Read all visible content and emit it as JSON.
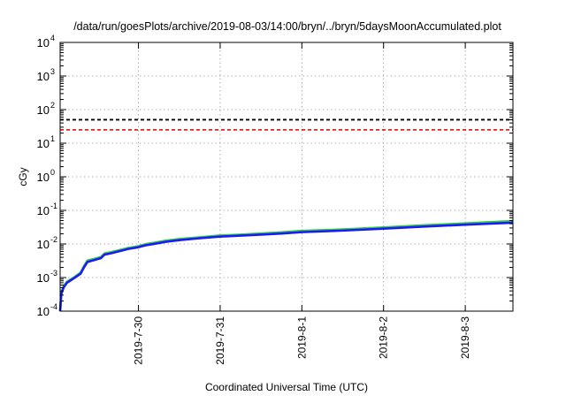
{
  "chart_data": {
    "type": "line",
    "title": "/data/run/goesPlots/archive/2019-08-03/14:00/bryn/../bryn/5daysMoonAccumulated.plot",
    "xlabel": "Coordinated Universal Time (UTC)",
    "ylabel": "cGy",
    "x_unit": "date (2019, UTC)",
    "xlim": [
      "2019-07-29T01:00",
      "2019-08-03T14:00"
    ],
    "x_ticks": [
      {
        "date": "2019-07-30T00:00",
        "label": "2019-7-30"
      },
      {
        "date": "2019-07-31T00:00",
        "label": "2019-7-31"
      },
      {
        "date": "2019-08-01T00:00",
        "label": "2019-8-1"
      },
      {
        "date": "2019-08-02T00:00",
        "label": "2019-8-2"
      },
      {
        "date": "2019-08-03T00:00",
        "label": "2019-8-3"
      }
    ],
    "y_scale": "log",
    "ylim": [
      0.0001,
      10000
    ],
    "y_ticks": [
      {
        "exp": "-4",
        "value": 0.0001
      },
      {
        "exp": "-3",
        "value": 0.001
      },
      {
        "exp": "-2",
        "value": 0.01
      },
      {
        "exp": "-1",
        "value": 0.1
      },
      {
        "exp": "0",
        "value": 1
      },
      {
        "exp": "1",
        "value": 10
      },
      {
        "exp": "2",
        "value": 100
      },
      {
        "exp": "3",
        "value": 1000
      },
      {
        "exp": "4",
        "value": 10000
      }
    ],
    "y_tick_base": "10",
    "grid": true,
    "reference_lines": [
      {
        "value": 50,
        "color": "#000000",
        "style": "dashed"
      },
      {
        "value": 25,
        "color": "#e8201e",
        "style": "dashed"
      }
    ],
    "series": [
      {
        "color": "#33cc33",
        "points": [
          [
            "2019-07-29T01:00",
            0.0001
          ],
          [
            "2019-07-29T01:20",
            0.00035
          ],
          [
            "2019-07-29T02:00",
            0.00055
          ],
          [
            "2019-07-29T03:00",
            0.00075
          ],
          [
            "2019-07-29T05:00",
            0.001
          ],
          [
            "2019-07-29T07:00",
            0.0014
          ],
          [
            "2019-07-29T08:00",
            0.0022
          ],
          [
            "2019-07-29T09:00",
            0.0032
          ],
          [
            "2019-07-29T11:00",
            0.0036
          ],
          [
            "2019-07-29T13:00",
            0.0041
          ],
          [
            "2019-07-29T14:00",
            0.0052
          ],
          [
            "2019-07-29T16:00",
            0.0057
          ],
          [
            "2019-07-29T19:00",
            0.0068
          ],
          [
            "2019-07-29T21:00",
            0.0076
          ],
          [
            "2019-07-30T00:00",
            0.0086
          ],
          [
            "2019-07-30T02:00",
            0.0098
          ],
          [
            "2019-07-30T05:00",
            0.011
          ],
          [
            "2019-07-30T08:00",
            0.0125
          ],
          [
            "2019-07-30T12:00",
            0.014
          ],
          [
            "2019-07-30T17:00",
            0.0155
          ],
          [
            "2019-07-30T21:00",
            0.0168
          ],
          [
            "2019-07-31T00:00",
            0.0178
          ],
          [
            "2019-07-31T06:00",
            0.019
          ],
          [
            "2019-07-31T12:00",
            0.0205
          ],
          [
            "2019-07-31T18:00",
            0.0222
          ],
          [
            "2019-08-01T00:00",
            0.0245
          ],
          [
            "2019-08-01T12:00",
            0.027
          ],
          [
            "2019-08-02T00:00",
            0.031
          ],
          [
            "2019-08-02T12:00",
            0.036
          ],
          [
            "2019-08-03T00:00",
            0.041
          ],
          [
            "2019-08-03T14:00",
            0.048
          ]
        ]
      },
      {
        "color": "#1a1aff",
        "points": [
          [
            "2019-07-29T01:00",
            0.0001
          ],
          [
            "2019-07-29T01:20",
            0.00032
          ],
          [
            "2019-07-29T02:00",
            0.0005
          ],
          [
            "2019-07-29T03:00",
            0.0007
          ],
          [
            "2019-07-29T05:00",
            0.00095
          ],
          [
            "2019-07-29T07:00",
            0.0013
          ],
          [
            "2019-07-29T08:00",
            0.002
          ],
          [
            "2019-07-29T09:00",
            0.0029
          ],
          [
            "2019-07-29T11:00",
            0.0033
          ],
          [
            "2019-07-29T13:00",
            0.0038
          ],
          [
            "2019-07-29T14:00",
            0.0048
          ],
          [
            "2019-07-29T16:00",
            0.0053
          ],
          [
            "2019-07-29T19:00",
            0.0063
          ],
          [
            "2019-07-29T21:00",
            0.0071
          ],
          [
            "2019-07-30T00:00",
            0.008
          ],
          [
            "2019-07-30T02:00",
            0.0091
          ],
          [
            "2019-07-30T05:00",
            0.0102
          ],
          [
            "2019-07-30T08:00",
            0.0116
          ],
          [
            "2019-07-30T12:00",
            0.013
          ],
          [
            "2019-07-30T17:00",
            0.0145
          ],
          [
            "2019-07-30T21:00",
            0.0157
          ],
          [
            "2019-07-31T00:00",
            0.0166
          ],
          [
            "2019-07-31T06:00",
            0.0177
          ],
          [
            "2019-07-31T12:00",
            0.019
          ],
          [
            "2019-07-31T18:00",
            0.0205
          ],
          [
            "2019-08-01T00:00",
            0.0225
          ],
          [
            "2019-08-01T12:00",
            0.025
          ],
          [
            "2019-08-02T00:00",
            0.0285
          ],
          [
            "2019-08-02T12:00",
            0.033
          ],
          [
            "2019-08-03T00:00",
            0.0375
          ],
          [
            "2019-08-03T14:00",
            0.043
          ]
        ]
      }
    ]
  }
}
